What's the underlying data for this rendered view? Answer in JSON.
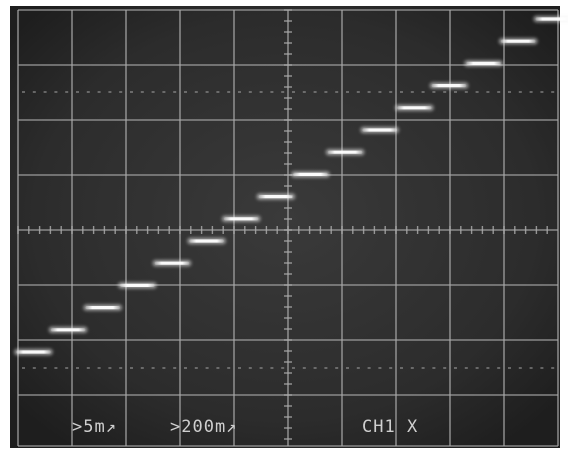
{
  "screen": {
    "background_color": "#2c2c2c",
    "trace_color": "#f4f4f4",
    "graticule_color": "#a9a9a9",
    "bezel_color": "#ffffff"
  },
  "readouts": {
    "ch1_scale": ">5m↗",
    "timebase": ">200m↗",
    "mode": "CH1 X"
  },
  "staircase": {
    "steps": 16,
    "direction": "ascending"
  }
}
